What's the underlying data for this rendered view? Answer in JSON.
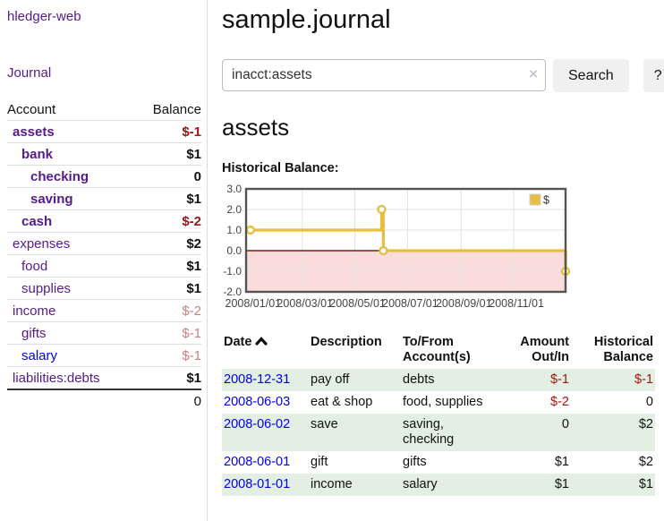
{
  "colors": {
    "link_visited": "#551a8b",
    "link_unvisited": "#0000ee",
    "negative_strong": "#a01616",
    "negative_light": "#c9817e",
    "row_stripe_green": "#e3efe3",
    "chart_line": "#e6bf42",
    "chart_negative_region": "#fbdcdc",
    "chart_zero_line": "#871919",
    "chart_grid": "#e3e3e3",
    "chart_border": "#545454"
  },
  "sidebar": {
    "brand": "hledger-web",
    "nav_journal": "Journal",
    "accounts_table": {
      "header_account": "Account",
      "header_balance": "Balance",
      "rows": [
        {
          "name": "assets",
          "depth": 1,
          "balance": "$-1",
          "bold": true,
          "negative": "strong"
        },
        {
          "name": "bank",
          "depth": 2,
          "balance": "$1",
          "bold": true
        },
        {
          "name": "checking",
          "depth": 3,
          "balance": "0",
          "bold": true
        },
        {
          "name": "saving",
          "depth": 3,
          "balance": "$1",
          "bold": true
        },
        {
          "name": "cash",
          "depth": 2,
          "balance": "$-2",
          "bold": true,
          "negative": "strong"
        },
        {
          "name": "expenses",
          "depth": 1,
          "balance": "$2"
        },
        {
          "name": "food",
          "depth": 2,
          "balance": "$1"
        },
        {
          "name": "supplies",
          "depth": 2,
          "balance": "$1"
        },
        {
          "name": "income",
          "depth": 1,
          "balance": "$-2",
          "negative": "light"
        },
        {
          "name": "gifts",
          "depth": 2,
          "balance": "$-1",
          "negative": "light"
        },
        {
          "name": "salary",
          "depth": 2,
          "balance": "$-1",
          "negative": "light",
          "link": "blue"
        },
        {
          "name": "liabilities:debts",
          "depth": 1,
          "balance": "$1"
        }
      ],
      "total": "0"
    }
  },
  "header": {
    "title": "sample.journal"
  },
  "search": {
    "query": "inacct:assets",
    "clear_icon": "×",
    "search_button": "Search",
    "help_button": "?"
  },
  "account_page": {
    "heading": "assets",
    "chart_title": "Historical Balance:"
  },
  "chart_data": {
    "type": "line",
    "step": true,
    "title": "Historical Balance",
    "series": [
      {
        "name": "$",
        "points": [
          {
            "date": "2008-01-01",
            "value": 1
          },
          {
            "date": "2008-06-01",
            "value": 2
          },
          {
            "date": "2008-06-03",
            "value": 0
          },
          {
            "date": "2008-12-31",
            "value": -1
          }
        ]
      }
    ],
    "x_ticks": [
      {
        "date": "2008-01-01",
        "label": "2008/01/01"
      },
      {
        "date": "2008-03-01",
        "label": "2008/03/01"
      },
      {
        "date": "2008-05-01",
        "label": "2008/05/01"
      },
      {
        "date": "2008-07-01",
        "label": "2008/07/01"
      },
      {
        "date": "2008-09-01",
        "label": "2008/09/01"
      },
      {
        "date": "2008-11-01",
        "label": "2008/11/01"
      }
    ],
    "y_ticks": [
      "3.0",
      "2.0",
      "1.0",
      "0.0",
      "-1.0",
      "-2.0"
    ],
    "ylim": [
      -2,
      3
    ],
    "xlim_days": [
      -5,
      365
    ],
    "legend": {
      "label": "$",
      "position": "top-right"
    },
    "grid": true
  },
  "register": {
    "columns": {
      "date": "Date",
      "description": "Description",
      "accounts": "To/From Account(s)",
      "amount": "Amount Out/In",
      "balance": "Historical Balance"
    },
    "sort_icon": "chevron-up",
    "rows": [
      {
        "date": "2008-12-31",
        "description": "pay off",
        "accounts": "debts",
        "amount": "$-1",
        "amount_neg": true,
        "balance": "$-1",
        "balance_neg": true,
        "stripe": true
      },
      {
        "date": "2008-06-03",
        "description": "eat & shop",
        "accounts": "food, supplies",
        "amount": "$-2",
        "amount_neg": true,
        "balance": "0",
        "balance_neg": false,
        "stripe": false
      },
      {
        "date": "2008-06-02",
        "description": "save",
        "accounts": "saving, checking",
        "amount": "0",
        "amount_neg": false,
        "balance": "$2",
        "balance_neg": false,
        "stripe": true
      },
      {
        "date": "2008-06-01",
        "description": "gift",
        "accounts": "gifts",
        "amount": "$1",
        "amount_neg": false,
        "balance": "$2",
        "balance_neg": false,
        "stripe": false
      },
      {
        "date": "2008-01-01",
        "description": "income",
        "accounts": "salary",
        "amount": "$1",
        "amount_neg": false,
        "balance": "$1",
        "balance_neg": false,
        "stripe": true
      }
    ]
  }
}
